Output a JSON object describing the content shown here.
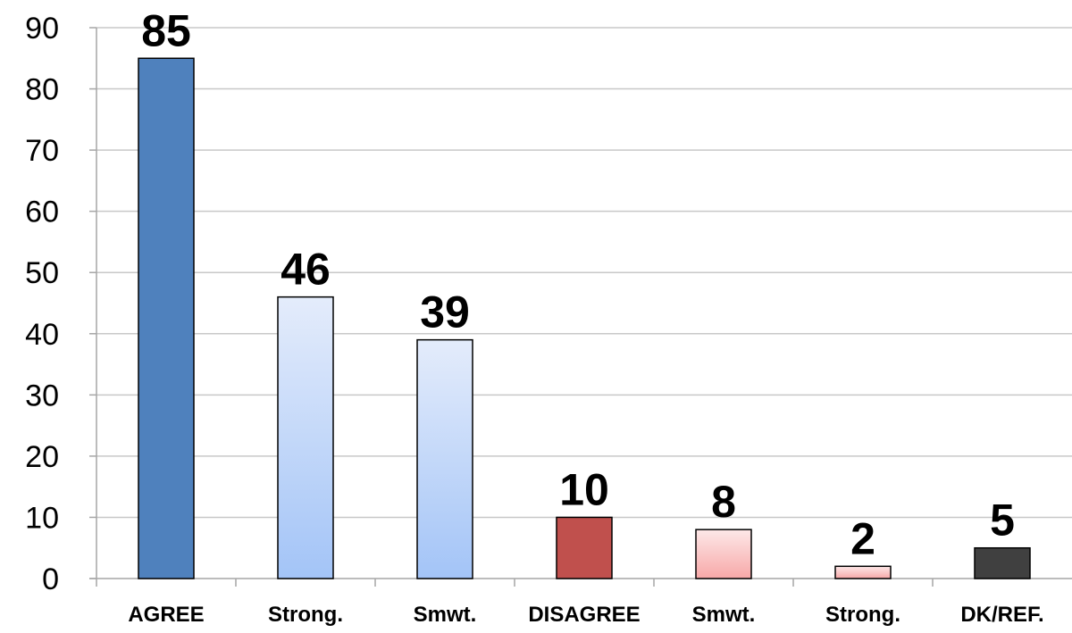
{
  "chart_data": {
    "type": "bar",
    "title": "",
    "xlabel": "",
    "ylabel": "",
    "ylim": [
      0,
      90
    ],
    "y_ticks": [
      0,
      10,
      20,
      30,
      40,
      50,
      60,
      70,
      80,
      90
    ],
    "grid": true,
    "legend": "none",
    "categories": [
      "AGREE",
      "Strong.",
      "Smwt.",
      "DISAGREE",
      "Smwt.",
      "Strong.",
      "DK/REF."
    ],
    "values": [
      85,
      46,
      39,
      10,
      8,
      2,
      5
    ],
    "data_labels": [
      "85",
      "46",
      "39",
      "10",
      "8",
      "2",
      "5"
    ],
    "bar_styles": [
      {
        "fill": "#4f81bd",
        "gradient_top": "#4f81bd",
        "gradient_bottom": "#4f81bd"
      },
      {
        "fill": "#c6d9f1",
        "gradient_top": "#e4ecfb",
        "gradient_bottom": "#a3c4f7"
      },
      {
        "fill": "#c6d9f1",
        "gradient_top": "#e4ecfb",
        "gradient_bottom": "#a3c4f7"
      },
      {
        "fill": "#c0504d",
        "gradient_top": "#c0504d",
        "gradient_bottom": "#c0504d"
      },
      {
        "fill": "#f9c4c4",
        "gradient_top": "#fde8e8",
        "gradient_bottom": "#f7a8a8"
      },
      {
        "fill": "#f9c4c4",
        "gradient_top": "#fde8e8",
        "gradient_bottom": "#f7a8a8"
      },
      {
        "fill": "#404040",
        "gradient_top": "#404040",
        "gradient_bottom": "#404040"
      }
    ],
    "colors": {
      "gridline": "#c8c8c8",
      "axis": "#a6a6a6",
      "text": "#000000",
      "background": "#ffffff"
    }
  }
}
